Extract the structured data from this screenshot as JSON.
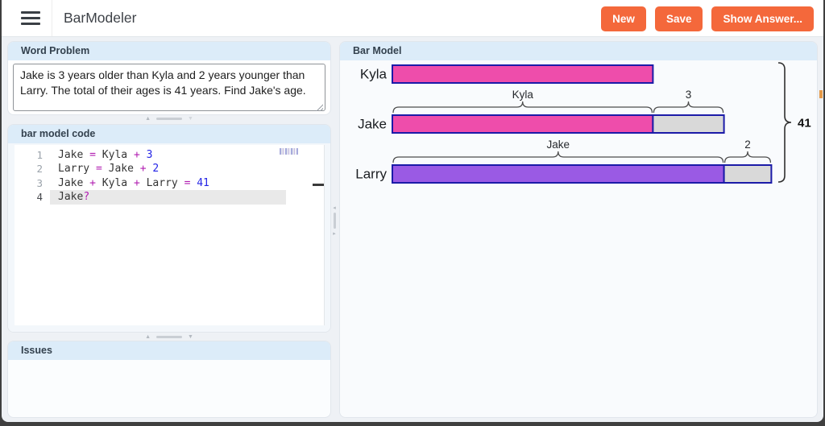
{
  "header": {
    "title": "BarModeler",
    "buttons": {
      "new": "New",
      "save": "Save",
      "show_answer": "Show Answer..."
    },
    "accent_color": "#f4683b"
  },
  "word_problem": {
    "title": "Word Problem",
    "text": "Jake is 3 years older than Kyla and 2 years younger than Larry. The total of their ages is 41 years. Find Jake's age."
  },
  "code_editor": {
    "title": "bar model code",
    "active_line": 4,
    "lines": [
      {
        "n": "1",
        "tokens": [
          [
            "id",
            "Jake "
          ],
          [
            "op",
            "= "
          ],
          [
            "id",
            "Kyla "
          ],
          [
            "op",
            "+ "
          ],
          [
            "num",
            "3"
          ]
        ]
      },
      {
        "n": "2",
        "tokens": [
          [
            "id",
            "Larry "
          ],
          [
            "op",
            "= "
          ],
          [
            "id",
            "Jake "
          ],
          [
            "op",
            "+ "
          ],
          [
            "num",
            "2"
          ]
        ]
      },
      {
        "n": "3",
        "tokens": [
          [
            "id",
            "Jake "
          ],
          [
            "op",
            "+ "
          ],
          [
            "id",
            "Kyla "
          ],
          [
            "op",
            "+ "
          ],
          [
            "id",
            "Larry "
          ],
          [
            "op",
            "= "
          ],
          [
            "num",
            "41"
          ]
        ]
      },
      {
        "n": "4",
        "tokens": [
          [
            "id",
            "Jake"
          ],
          [
            "op",
            "?"
          ]
        ]
      }
    ],
    "token_colors": {
      "id": "#343434",
      "op": "#b01db0",
      "num": "#2525e6"
    }
  },
  "issues": {
    "title": "Issues"
  },
  "bar_model": {
    "title": "Bar Model",
    "rows": [
      {
        "label": "Kyla",
        "segments": [
          {
            "value": 11,
            "fill": "#ee4dab",
            "brace": null
          }
        ]
      },
      {
        "label": "Jake",
        "segments": [
          {
            "value": 11,
            "fill": "#ee4dab",
            "brace": "Kyla"
          },
          {
            "value": 3,
            "fill": "#d9d9d9",
            "brace": "3"
          }
        ]
      },
      {
        "label": "Larry",
        "segments": [
          {
            "value": 14,
            "fill": "#9a5ae4",
            "brace": "Jake"
          },
          {
            "value": 2,
            "fill": "#d9d9d9",
            "brace": "2"
          }
        ]
      }
    ],
    "total_label": "41",
    "colors": {
      "bar_border": "#1b1ba8",
      "brace": "#4d4d4d",
      "pink": "#ee4dab",
      "purple": "#9a5ae4",
      "gray": "#d9d9d9"
    }
  }
}
